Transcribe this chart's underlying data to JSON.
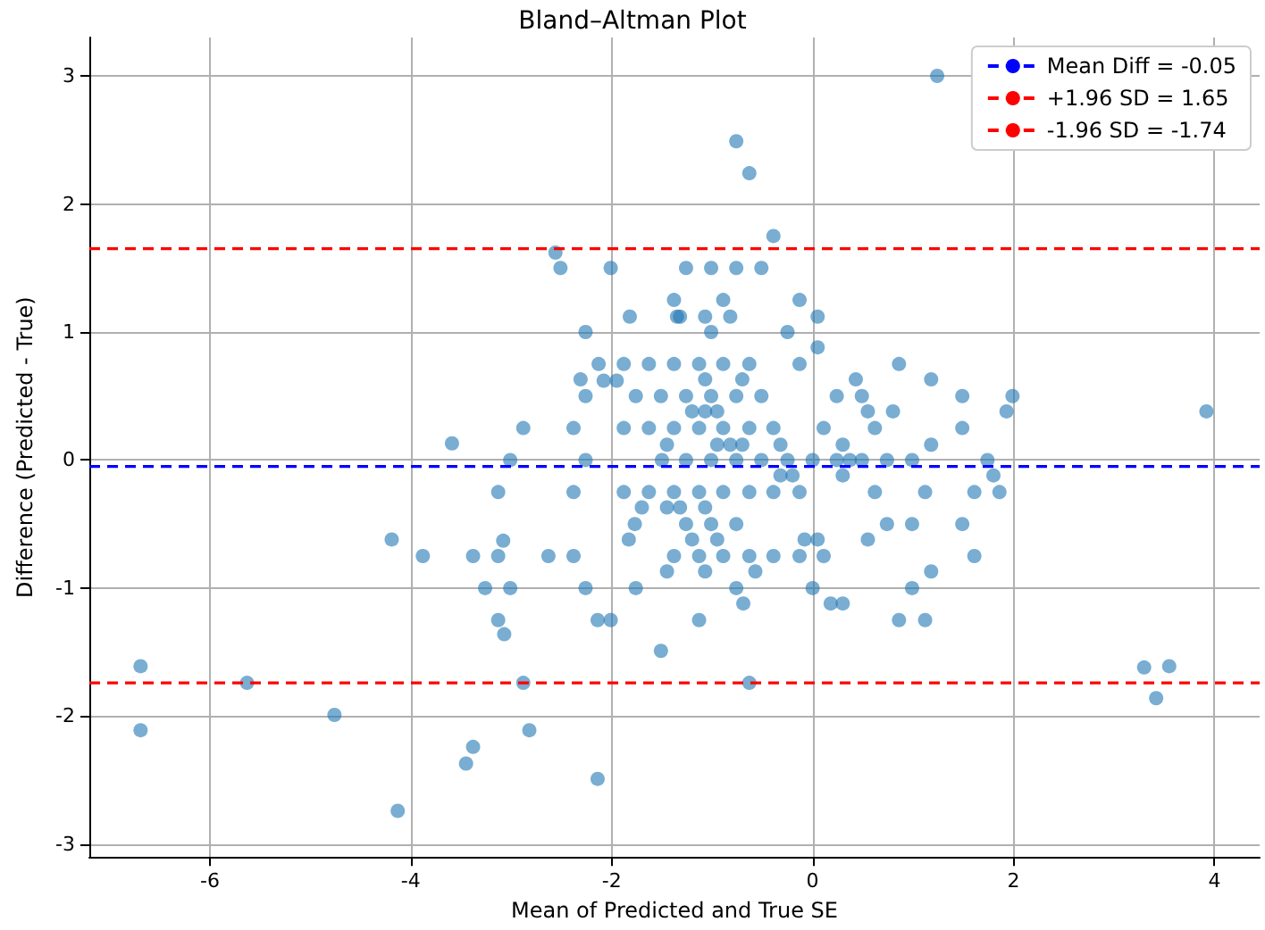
{
  "chart_data": {
    "type": "scatter",
    "title": "Bland–Altman Plot",
    "xlabel": "Mean of Predicted and True SE",
    "ylabel": "Difference (Predicted - True)",
    "xlim": [
      -7.2,
      4.45
    ],
    "ylim": [
      -3.1,
      3.3
    ],
    "xticks": [
      -6,
      -4,
      -2,
      0,
      2,
      4
    ],
    "yticks": [
      -3,
      -2,
      -1,
      0,
      1,
      2,
      3
    ],
    "grid": true,
    "legend": "top right",
    "marker": "circle",
    "series": [
      {
        "color": "#1f77b4",
        "x": [
          -2.56,
          -2.51,
          -2.01,
          -1.82,
          -1.38,
          -1.35,
          -2.26,
          -2.13,
          -1.88,
          -1.63,
          -1.38,
          -2.31,
          -2.08,
          -1.95,
          -2.26,
          -1.76,
          -1.51,
          1.24,
          -0.76,
          -0.63,
          -0.39,
          -1.26,
          -1.01,
          -0.76,
          -0.51,
          -0.89,
          -0.13,
          -1.32,
          -1.07,
          -0.82,
          0.05,
          -1.01,
          -0.25,
          0.05,
          -1.13,
          -0.89,
          -0.63,
          -0.13,
          0.86,
          -1.07,
          -0.7,
          0.43,
          1.18,
          -1.26,
          -1.01,
          -0.76,
          -0.51,
          0.24,
          0.49,
          1.49,
          1.99,
          -1.2,
          -1.07,
          -0.95,
          0.55,
          0.8,
          1.93,
          3.92,
          -1.38,
          -1.13,
          -0.89,
          -0.63,
          -0.39,
          0.11,
          0.62,
          1.49,
          -2.88,
          -2.38,
          -1.88,
          -1.63,
          -3.59,
          -1.45,
          -0.95,
          -0.82,
          -0.7,
          -0.32,
          0.3,
          1.18,
          -1.5,
          -1.26,
          -1.01,
          -0.76,
          -0.51,
          -0.25,
          0.0,
          0.24,
          0.37,
          0.49,
          0.74,
          0.99,
          1.74,
          -3.01,
          -2.26,
          -0.32,
          -0.2,
          0.3,
          1.8,
          -1.38,
          -1.13,
          -0.89,
          -0.63,
          -0.39,
          -0.13,
          0.62,
          1.12,
          1.61,
          1.86,
          -3.13,
          -2.38,
          -1.88,
          -1.63,
          -1.45,
          -1.32,
          -1.07,
          -1.7,
          -1.26,
          -1.01,
          -0.76,
          0.74,
          0.99,
          1.49,
          -1.77,
          -1.2,
          -0.95,
          -0.08,
          0.05,
          0.55,
          -1.83,
          -3.08,
          -4.19,
          -1.38,
          -1.13,
          -0.89,
          -0.63,
          -0.39,
          -0.13,
          0.11,
          1.61,
          -3.88,
          -3.38,
          -3.13,
          -2.63,
          -2.38,
          -1.45,
          -1.07,
          -0.57,
          1.18,
          -0.76,
          0.0,
          0.99,
          -3.26,
          -3.01,
          -2.26,
          -1.76,
          -0.69,
          0.18,
          0.3,
          -1.13,
          0.86,
          1.12,
          -3.13,
          -2.14,
          -2.01,
          -3.07,
          -1.51,
          -0.63,
          -6.69,
          -5.63,
          -2.88,
          3.3,
          3.55,
          3.42,
          -6.69,
          -4.76,
          -3.38,
          -3.45,
          -2.82,
          -2.14,
          -4.13
        ],
        "values": [
          1.62,
          1.5,
          1.5,
          1.12,
          1.25,
          1.12,
          1.0,
          0.75,
          0.75,
          0.75,
          0.75,
          0.63,
          0.62,
          0.62,
          0.5,
          0.5,
          0.5,
          3.0,
          2.49,
          2.24,
          1.75,
          1.5,
          1.5,
          1.5,
          1.5,
          1.25,
          1.25,
          1.12,
          1.12,
          1.12,
          1.12,
          1.0,
          1.0,
          0.88,
          0.75,
          0.75,
          0.75,
          0.75,
          0.75,
          0.63,
          0.63,
          0.63,
          0.63,
          0.5,
          0.5,
          0.5,
          0.5,
          0.5,
          0.5,
          0.5,
          0.5,
          0.38,
          0.38,
          0.38,
          0.38,
          0.38,
          0.38,
          0.38,
          0.25,
          0.25,
          0.25,
          0.25,
          0.25,
          0.25,
          0.25,
          0.25,
          0.25,
          0.25,
          0.25,
          0.25,
          0.13,
          0.12,
          0.12,
          0.12,
          0.12,
          0.12,
          0.12,
          0.12,
          0.0,
          0.0,
          0.0,
          0.0,
          0.0,
          0.0,
          0.0,
          0.0,
          0.0,
          0.0,
          0.0,
          0.0,
          0.0,
          0.0,
          0.0,
          -0.12,
          -0.12,
          -0.12,
          -0.12,
          -0.25,
          -0.25,
          -0.25,
          -0.25,
          -0.25,
          -0.25,
          -0.25,
          -0.25,
          -0.25,
          -0.25,
          -0.25,
          -0.25,
          -0.25,
          -0.25,
          -0.37,
          -0.37,
          -0.37,
          -0.37,
          -0.5,
          -0.5,
          -0.5,
          -0.5,
          -0.5,
          -0.5,
          -0.5,
          -0.62,
          -0.62,
          -0.62,
          -0.62,
          -0.62,
          -0.62,
          -0.63,
          -0.62,
          -0.75,
          -0.75,
          -0.75,
          -0.75,
          -0.75,
          -0.75,
          -0.75,
          -0.75,
          -0.75,
          -0.75,
          -0.75,
          -0.75,
          -0.75,
          -0.87,
          -0.87,
          -0.87,
          -0.87,
          -1.0,
          -1.0,
          -1.0,
          -1.0,
          -1.0,
          -1.0,
          -1.0,
          -1.12,
          -1.12,
          -1.12,
          -1.25,
          -1.25,
          -1.25,
          -1.25,
          -1.25,
          -1.25,
          -1.36,
          -1.49,
          -1.74,
          -1.61,
          -1.74,
          -1.74,
          -1.62,
          -1.61,
          -1.86,
          -2.11,
          -1.99,
          -2.24,
          -2.37,
          -2.11,
          -2.49,
          -2.74
        ]
      }
    ],
    "ref_lines": [
      {
        "axis": "y",
        "value": -0.05,
        "label": "Mean Diff = -0.05",
        "color": "#0000ff",
        "line_style": "dashed"
      },
      {
        "axis": "y",
        "value": 1.65,
        "label": "+1.96 SD = 1.65",
        "color": "#ff0000",
        "line_style": "dashed"
      },
      {
        "axis": "y",
        "value": -1.74,
        "label": "-1.96 SD = -1.74",
        "color": "#ff0000",
        "line_style": "dashed"
      }
    ]
  }
}
